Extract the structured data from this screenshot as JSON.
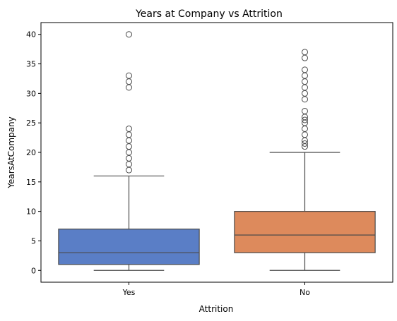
{
  "chart_data": {
    "type": "box",
    "title": "Years at Company vs Attrition",
    "xlabel": "Attrition",
    "ylabel": "YearsAtCompany",
    "categories": [
      "Yes",
      "No"
    ],
    "ylim": [
      -2,
      42
    ],
    "yticks": [
      0,
      5,
      10,
      15,
      20,
      25,
      30,
      35,
      40
    ],
    "grid": false,
    "series": [
      {
        "category": "Yes",
        "color": "#5a7ec6",
        "min": 0,
        "q1": 1,
        "median": 3,
        "q3": 7,
        "max": 16,
        "outliers": [
          17,
          18,
          19,
          20,
          21,
          22,
          23,
          24,
          31,
          32,
          33,
          40
        ]
      },
      {
        "category": "No",
        "color": "#dd8a5c",
        "min": 0,
        "q1": 3,
        "median": 6,
        "q3": 10,
        "max": 20,
        "outliers": [
          21,
          21.5,
          22,
          23,
          24,
          25,
          25.5,
          26,
          27,
          29,
          30,
          31,
          32,
          33,
          34,
          36,
          37
        ]
      }
    ]
  }
}
